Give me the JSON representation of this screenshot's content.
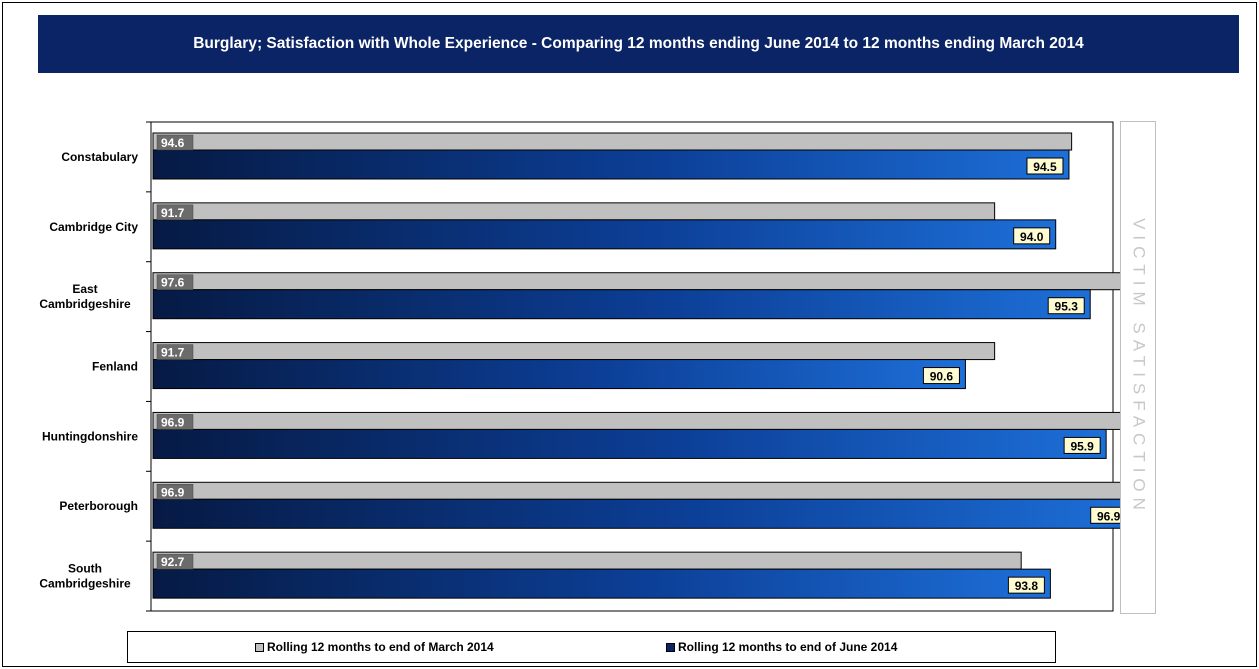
{
  "chart_data": {
    "type": "bar",
    "orientation": "horizontal",
    "title": "Burglary; Satisfaction with Whole Experience - Comparing 12 months ending June 2014 to 12 months ending March 2014",
    "categories": [
      "Constabulary",
      "Cambridge City",
      "East Cambridgeshire",
      "Fenland",
      "Huntingdonshire",
      "Peterborough",
      "South Cambridgeshire"
    ],
    "category_lines": [
      [
        "Constabulary"
      ],
      [
        "Cambridge City"
      ],
      [
        "East",
        "Cambridgeshire"
      ],
      [
        "Fenland"
      ],
      [
        "Huntingdonshire"
      ],
      [
        "Peterborough"
      ],
      [
        "South",
        "Cambridgeshire"
      ]
    ],
    "series": [
      {
        "name": "Rolling 12 months to end of March 2014",
        "values": [
          94.6,
          91.7,
          97.6,
          91.7,
          96.9,
          96.9,
          92.7
        ],
        "labels": [
          "94.6",
          "91.7",
          "97.6",
          "91.7",
          "96.9",
          "96.9",
          "92.7"
        ],
        "color": "#c0c0c0"
      },
      {
        "name": "Rolling 12 months to end of June 2014",
        "values": [
          94.5,
          94.0,
          95.3,
          90.6,
          95.9,
          96.9,
          93.8
        ],
        "labels": [
          "94.5",
          "94.0",
          "95.3",
          "90.6",
          "95.9",
          "96.9",
          "93.8"
        ],
        "color": "#0b2466"
      }
    ],
    "side_label": "VICTIM SATISFACTION",
    "grid": false,
    "legend_position": "bottom"
  }
}
